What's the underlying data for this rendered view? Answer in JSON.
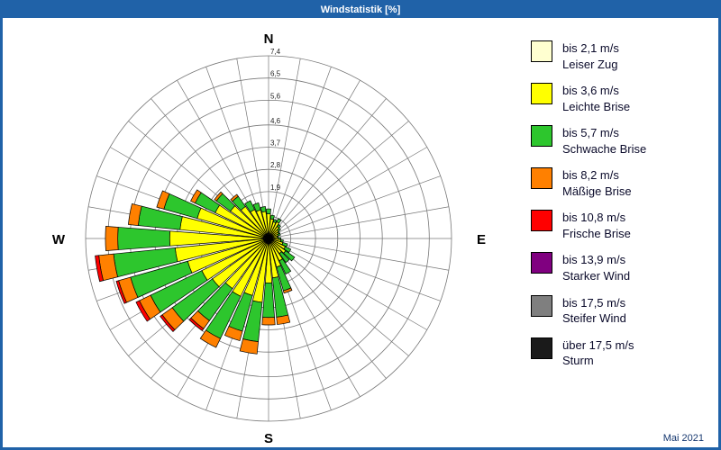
{
  "title": "Windstatistik [%]",
  "footer": {
    "date": "Mai 2021"
  },
  "legend": {
    "items": [
      {
        "speed": "bis 2,1 m/s",
        "name": "Leiser Zug",
        "color": "#FFFFD0"
      },
      {
        "speed": "bis 3,6 m/s",
        "name": "Leichte Brise",
        "color": "#FFFF00"
      },
      {
        "speed": "bis 5,7 m/s",
        "name": "Schwache Brise",
        "color": "#2DC62D"
      },
      {
        "speed": "bis 8,2 m/s",
        "name": "Mäßige Brise",
        "color": "#FF8000"
      },
      {
        "speed": "bis 10,8 m/s",
        "name": "Frische Brise",
        "color": "#FF0000"
      },
      {
        "speed": "bis 13,9 m/s",
        "name": "Starker Wind",
        "color": "#800080"
      },
      {
        "speed": "bis 17,5 m/s",
        "name": "Steifer Wind",
        "color": "#7F7F7F"
      },
      {
        "speed": "über 17,5 m/s",
        "name": "Sturm",
        "color": "#1A1A1A"
      }
    ]
  },
  "chart_data": {
    "type": "wind-rose",
    "title": "Windstatistik [%]",
    "compass": {
      "n": "N",
      "e": "E",
      "s": "S",
      "w": "W"
    },
    "r_max": 7.4,
    "rings": [
      0.9,
      1.9,
      2.8,
      3.7,
      4.6,
      5.6,
      6.5,
      7.4
    ],
    "ring_labels": [
      {
        "value": 1.9,
        "label": "1,9"
      },
      {
        "value": 2.8,
        "label": "2,8"
      },
      {
        "value": 3.7,
        "label": "3,7"
      },
      {
        "value": 4.6,
        "label": "4,6"
      },
      {
        "value": 5.6,
        "label": "5,6"
      },
      {
        "value": 6.5,
        "label": "6,5"
      },
      {
        "value": 7.4,
        "label": "7,4"
      }
    ],
    "sector_width_deg": 10,
    "series_names": [
      "bis 2,1 m/s",
      "bis 3,6 m/s",
      "bis 5,7 m/s",
      "bis 8,2 m/s",
      "bis 10,8 m/s",
      "bis 13,9 m/s",
      "bis 17,5 m/s",
      "über 17,5 m/s"
    ],
    "series_colors": [
      "#FFFFD0",
      "#FFFF00",
      "#2DC62D",
      "#FF8000",
      "#FF0000",
      "#800080",
      "#7F7F7F",
      "#1A1A1A"
    ],
    "sectors": [
      {
        "dir_deg": 0,
        "segments": [
          0.2,
          0.8,
          0.2,
          0,
          0,
          0,
          0,
          0
        ]
      },
      {
        "dir_deg": 10,
        "segments": [
          0.2,
          0.6,
          0.15,
          0,
          0,
          0,
          0,
          0
        ]
      },
      {
        "dir_deg": 20,
        "segments": [
          0.15,
          0.55,
          0.1,
          0,
          0,
          0,
          0,
          0
        ]
      },
      {
        "dir_deg": 30,
        "segments": [
          0.15,
          0.6,
          0.15,
          0,
          0,
          0,
          0,
          0
        ]
      },
      {
        "dir_deg": 40,
        "segments": [
          0.1,
          0.5,
          0.1,
          0,
          0,
          0,
          0,
          0
        ]
      },
      {
        "dir_deg": 50,
        "segments": [
          0.1,
          0.4,
          0.1,
          0,
          0,
          0,
          0,
          0
        ]
      },
      {
        "dir_deg": 60,
        "segments": [
          0.1,
          0.35,
          0.05,
          0,
          0,
          0,
          0,
          0
        ]
      },
      {
        "dir_deg": 70,
        "segments": [
          0.1,
          0.3,
          0.1,
          0,
          0,
          0,
          0,
          0
        ]
      },
      {
        "dir_deg": 80,
        "segments": [
          0.1,
          0.25,
          0.05,
          0,
          0,
          0,
          0,
          0
        ]
      },
      {
        "dir_deg": 90,
        "segments": [
          0.1,
          0.3,
          0.1,
          0,
          0,
          0,
          0,
          0
        ]
      },
      {
        "dir_deg": 100,
        "segments": [
          0.1,
          0.4,
          0.1,
          0,
          0,
          0,
          0,
          0
        ]
      },
      {
        "dir_deg": 110,
        "segments": [
          0.1,
          0.5,
          0.2,
          0,
          0,
          0,
          0,
          0
        ]
      },
      {
        "dir_deg": 120,
        "segments": [
          0.15,
          0.6,
          0.25,
          0,
          0,
          0,
          0,
          0
        ]
      },
      {
        "dir_deg": 130,
        "segments": [
          0.15,
          0.7,
          0.45,
          0,
          0,
          0,
          0,
          0
        ]
      },
      {
        "dir_deg": 140,
        "segments": [
          0.15,
          0.6,
          0.45,
          0,
          0,
          0,
          0,
          0
        ]
      },
      {
        "dir_deg": 150,
        "segments": [
          0.2,
          0.8,
          0.6,
          0,
          0,
          0,
          0,
          0
        ]
      },
      {
        "dir_deg": 160,
        "segments": [
          0.2,
          1.0,
          1.0,
          0.1,
          0,
          0,
          0,
          0
        ]
      },
      {
        "dir_deg": 170,
        "segments": [
          0.2,
          1.4,
          1.6,
          0.3,
          0,
          0,
          0,
          0
        ]
      },
      {
        "dir_deg": 180,
        "segments": [
          0.2,
          1.6,
          1.4,
          0.3,
          0,
          0,
          0,
          0
        ]
      },
      {
        "dir_deg": 190,
        "segments": [
          0.2,
          2.4,
          1.6,
          0.5,
          0,
          0,
          0,
          0
        ]
      },
      {
        "dir_deg": 200,
        "segments": [
          0.2,
          2.2,
          1.5,
          0.4,
          0,
          0,
          0,
          0
        ]
      },
      {
        "dir_deg": 210,
        "segments": [
          0.2,
          2.4,
          1.9,
          0.4,
          0,
          0,
          0,
          0
        ]
      },
      {
        "dir_deg": 220,
        "segments": [
          0.2,
          2.3,
          1.6,
          0.4,
          0.1,
          0,
          0,
          0
        ]
      },
      {
        "dir_deg": 230,
        "segments": [
          0.2,
          2.6,
          2.0,
          0.5,
          0.1,
          0,
          0,
          0
        ]
      },
      {
        "dir_deg": 240,
        "segments": [
          0.2,
          2.8,
          2.3,
          0.5,
          0.15,
          0,
          0,
          0
        ]
      },
      {
        "dir_deg": 250,
        "segments": [
          0.2,
          3.2,
          2.4,
          0.5,
          0.1,
          0,
          0,
          0
        ]
      },
      {
        "dir_deg": 260,
        "segments": [
          0.2,
          3.6,
          2.5,
          0.6,
          0.15,
          0,
          0,
          0
        ]
      },
      {
        "dir_deg": 270,
        "segments": [
          0.2,
          3.8,
          2.1,
          0.5,
          0,
          0,
          0,
          0
        ]
      },
      {
        "dir_deg": 280,
        "segments": [
          0.2,
          3.4,
          1.7,
          0.4,
          0,
          0,
          0,
          0
        ]
      },
      {
        "dir_deg": 290,
        "segments": [
          0.2,
          2.8,
          1.4,
          0.3,
          0,
          0,
          0,
          0
        ]
      },
      {
        "dir_deg": 300,
        "segments": [
          0.2,
          2.2,
          0.9,
          0.2,
          0,
          0,
          0,
          0
        ]
      },
      {
        "dir_deg": 310,
        "segments": [
          0.2,
          1.7,
          0.7,
          0.1,
          0,
          0,
          0,
          0
        ]
      },
      {
        "dir_deg": 320,
        "segments": [
          0.2,
          1.4,
          0.5,
          0.1,
          0,
          0,
          0,
          0
        ]
      },
      {
        "dir_deg": 330,
        "segments": [
          0.2,
          1.1,
          0.4,
          0,
          0,
          0,
          0,
          0
        ]
      },
      {
        "dir_deg": 340,
        "segments": [
          0.2,
          1.0,
          0.3,
          0,
          0,
          0,
          0,
          0
        ]
      },
      {
        "dir_deg": 350,
        "segments": [
          0.2,
          0.9,
          0.2,
          0,
          0,
          0,
          0,
          0
        ]
      }
    ]
  }
}
